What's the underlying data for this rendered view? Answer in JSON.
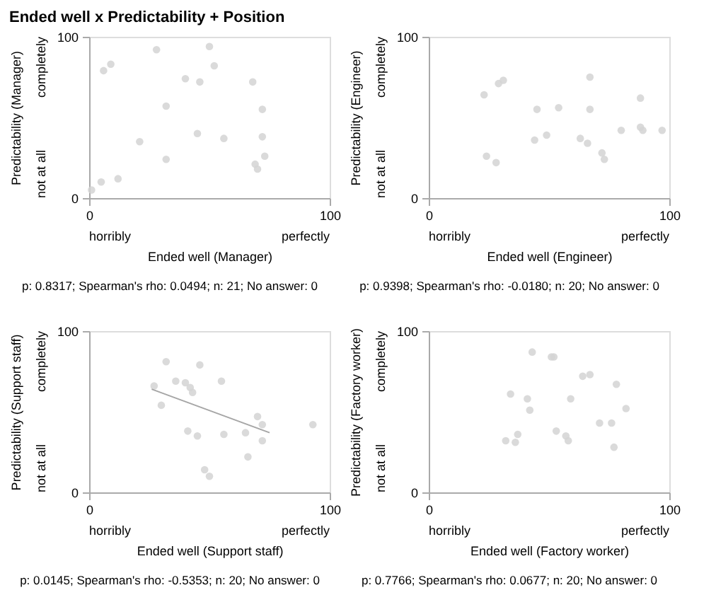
{
  "chart_data": [
    {
      "type": "scatter",
      "title": "Ended well x Predictability + Position",
      "xlabel": "Ended well (Manager)",
      "ylabel": "Predictability (Manager)",
      "xlim": [
        0,
        100
      ],
      "ylim": [
        0,
        100
      ],
      "xticks": [
        0,
        100
      ],
      "yticks": [
        0,
        100
      ],
      "marker": "circle",
      "annotations": [
        "horribly",
        "perfectly",
        "not at all",
        "completely",
        "p: 0.8317; Spearman's rho: 0.0494; n: 21; No answer: 0"
      ],
      "series": [
        {
          "type": "scatter",
          "color": "#d4d4d4",
          "x": [
            1,
            5,
            6,
            9,
            12,
            21,
            28,
            32,
            32,
            40,
            45,
            46,
            50,
            52,
            56,
            68,
            69,
            70,
            72,
            72,
            73
          ],
          "values": [
            5,
            10,
            79,
            83,
            12,
            35,
            92,
            57,
            24,
            74,
            40,
            72,
            94,
            82,
            37,
            72,
            21,
            18,
            55,
            38,
            26
          ]
        }
      ]
    },
    {
      "type": "scatter",
      "xlabel": "Ended well (Engineer)",
      "ylabel": "Predictability (Engineer)",
      "xlim": [
        0,
        100
      ],
      "ylim": [
        0,
        100
      ],
      "xticks": [
        0,
        100
      ],
      "yticks": [
        0,
        100
      ],
      "marker": "circle",
      "annotations": [
        "horribly",
        "perfectly",
        "not at all",
        "completely",
        "p: 0.9398; Spearman's rho: -0.0180; n: 20; No answer: 0"
      ],
      "series": [
        {
          "type": "scatter",
          "color": "#d4d4d4",
          "x": [
            23,
            24,
            28,
            29,
            31,
            44,
            45,
            49,
            54,
            63,
            66,
            67,
            67,
            72,
            73,
            80,
            88,
            88,
            89,
            97
          ],
          "values": [
            64,
            26,
            22,
            71,
            73,
            36,
            55,
            39,
            56,
            37,
            34,
            75,
            55,
            28,
            24,
            42,
            62,
            44,
            42,
            42
          ]
        }
      ]
    },
    {
      "type": "scatter",
      "xlabel": "Ended well (Support staff)",
      "ylabel": "Predictability (Support staff)",
      "xlim": [
        0,
        100
      ],
      "ylim": [
        0,
        100
      ],
      "xticks": [
        0,
        100
      ],
      "yticks": [
        0,
        100
      ],
      "marker": "circle",
      "annotations": [
        "horribly",
        "perfectly",
        "not at all",
        "completely",
        "p: 0.0145; Spearman's rho: -0.5353; n: 20; No answer: 0"
      ],
      "series": [
        {
          "type": "scatter",
          "color": "#d4d4d4",
          "x": [
            27,
            32,
            30,
            36,
            40,
            42,
            43,
            46,
            41,
            45,
            48,
            50,
            55,
            56,
            65,
            66,
            70,
            72,
            72,
            93
          ],
          "values": [
            66,
            81,
            54,
            69,
            68,
            65,
            62,
            79,
            38,
            35,
            14,
            10,
            69,
            36,
            37,
            22,
            47,
            42,
            32,
            42
          ]
        },
        {
          "type": "line",
          "color": "#a6a6a6",
          "marker": "none",
          "x": [
            26,
            75
          ],
          "values": [
            64,
            37
          ]
        }
      ]
    },
    {
      "type": "scatter",
      "xlabel": "Ended well (Factory worker)",
      "ylabel": "Predictability (Factory worker)",
      "xlim": [
        0,
        100
      ],
      "ylim": [
        0,
        100
      ],
      "xticks": [
        0,
        100
      ],
      "yticks": [
        0,
        100
      ],
      "marker": "circle",
      "annotations": [
        "horribly",
        "perfectly",
        "not at all",
        "completely",
        "p: 0.7766; Spearman's rho: 0.0677; n: 20; No answer: 0"
      ],
      "series": [
        {
          "type": "scatter",
          "color": "#d4d4d4",
          "x": [
            32,
            34,
            36,
            37,
            41,
            42,
            43,
            51,
            52,
            53,
            57,
            58,
            59,
            64,
            67,
            71,
            76,
            77,
            78,
            82
          ],
          "values": [
            32,
            61,
            31,
            36,
            58,
            51,
            87,
            84,
            84,
            38,
            35,
            32,
            58,
            72,
            73,
            43,
            43,
            28,
            67,
            52
          ]
        }
      ]
    }
  ]
}
